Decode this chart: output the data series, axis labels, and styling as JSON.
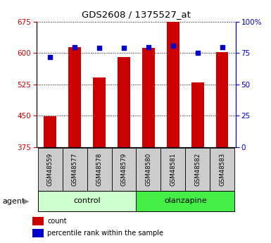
{
  "title": "GDS2608 / 1375527_at",
  "samples": [
    "GSM48559",
    "GSM48577",
    "GSM48578",
    "GSM48579",
    "GSM48580",
    "GSM48581",
    "GSM48582",
    "GSM48583"
  ],
  "counts": [
    448,
    614,
    542,
    590,
    612,
    675,
    530,
    603
  ],
  "percentiles": [
    72,
    80,
    79,
    79,
    80,
    81,
    75,
    80
  ],
  "groups": [
    {
      "label": "control",
      "indices": [
        0,
        1,
        2,
        3
      ],
      "color": "#ccffcc"
    },
    {
      "label": "olanzapine",
      "indices": [
        4,
        5,
        6,
        7
      ],
      "color": "#44ee44"
    }
  ],
  "ylim_left": [
    375,
    675
  ],
  "yticks_left": [
    375,
    450,
    525,
    600,
    675
  ],
  "ylim_right": [
    0,
    100
  ],
  "yticks_right": [
    0,
    25,
    50,
    75,
    100
  ],
  "ytick_labels_right": [
    "0",
    "25",
    "50",
    "75",
    "100%"
  ],
  "bar_color": "#cc0000",
  "dot_color": "#0000cc",
  "bar_width": 0.5,
  "left_axis_color": "#cc0000",
  "right_axis_color": "#0000cc",
  "legend_items": [
    {
      "label": "count",
      "color": "#cc0000"
    },
    {
      "label": "percentile rank within the sample",
      "color": "#0000cc"
    }
  ],
  "agent_label": "agent",
  "sample_box_bg": "#cccccc",
  "grid_color": "black",
  "grid_linestyle": ":"
}
